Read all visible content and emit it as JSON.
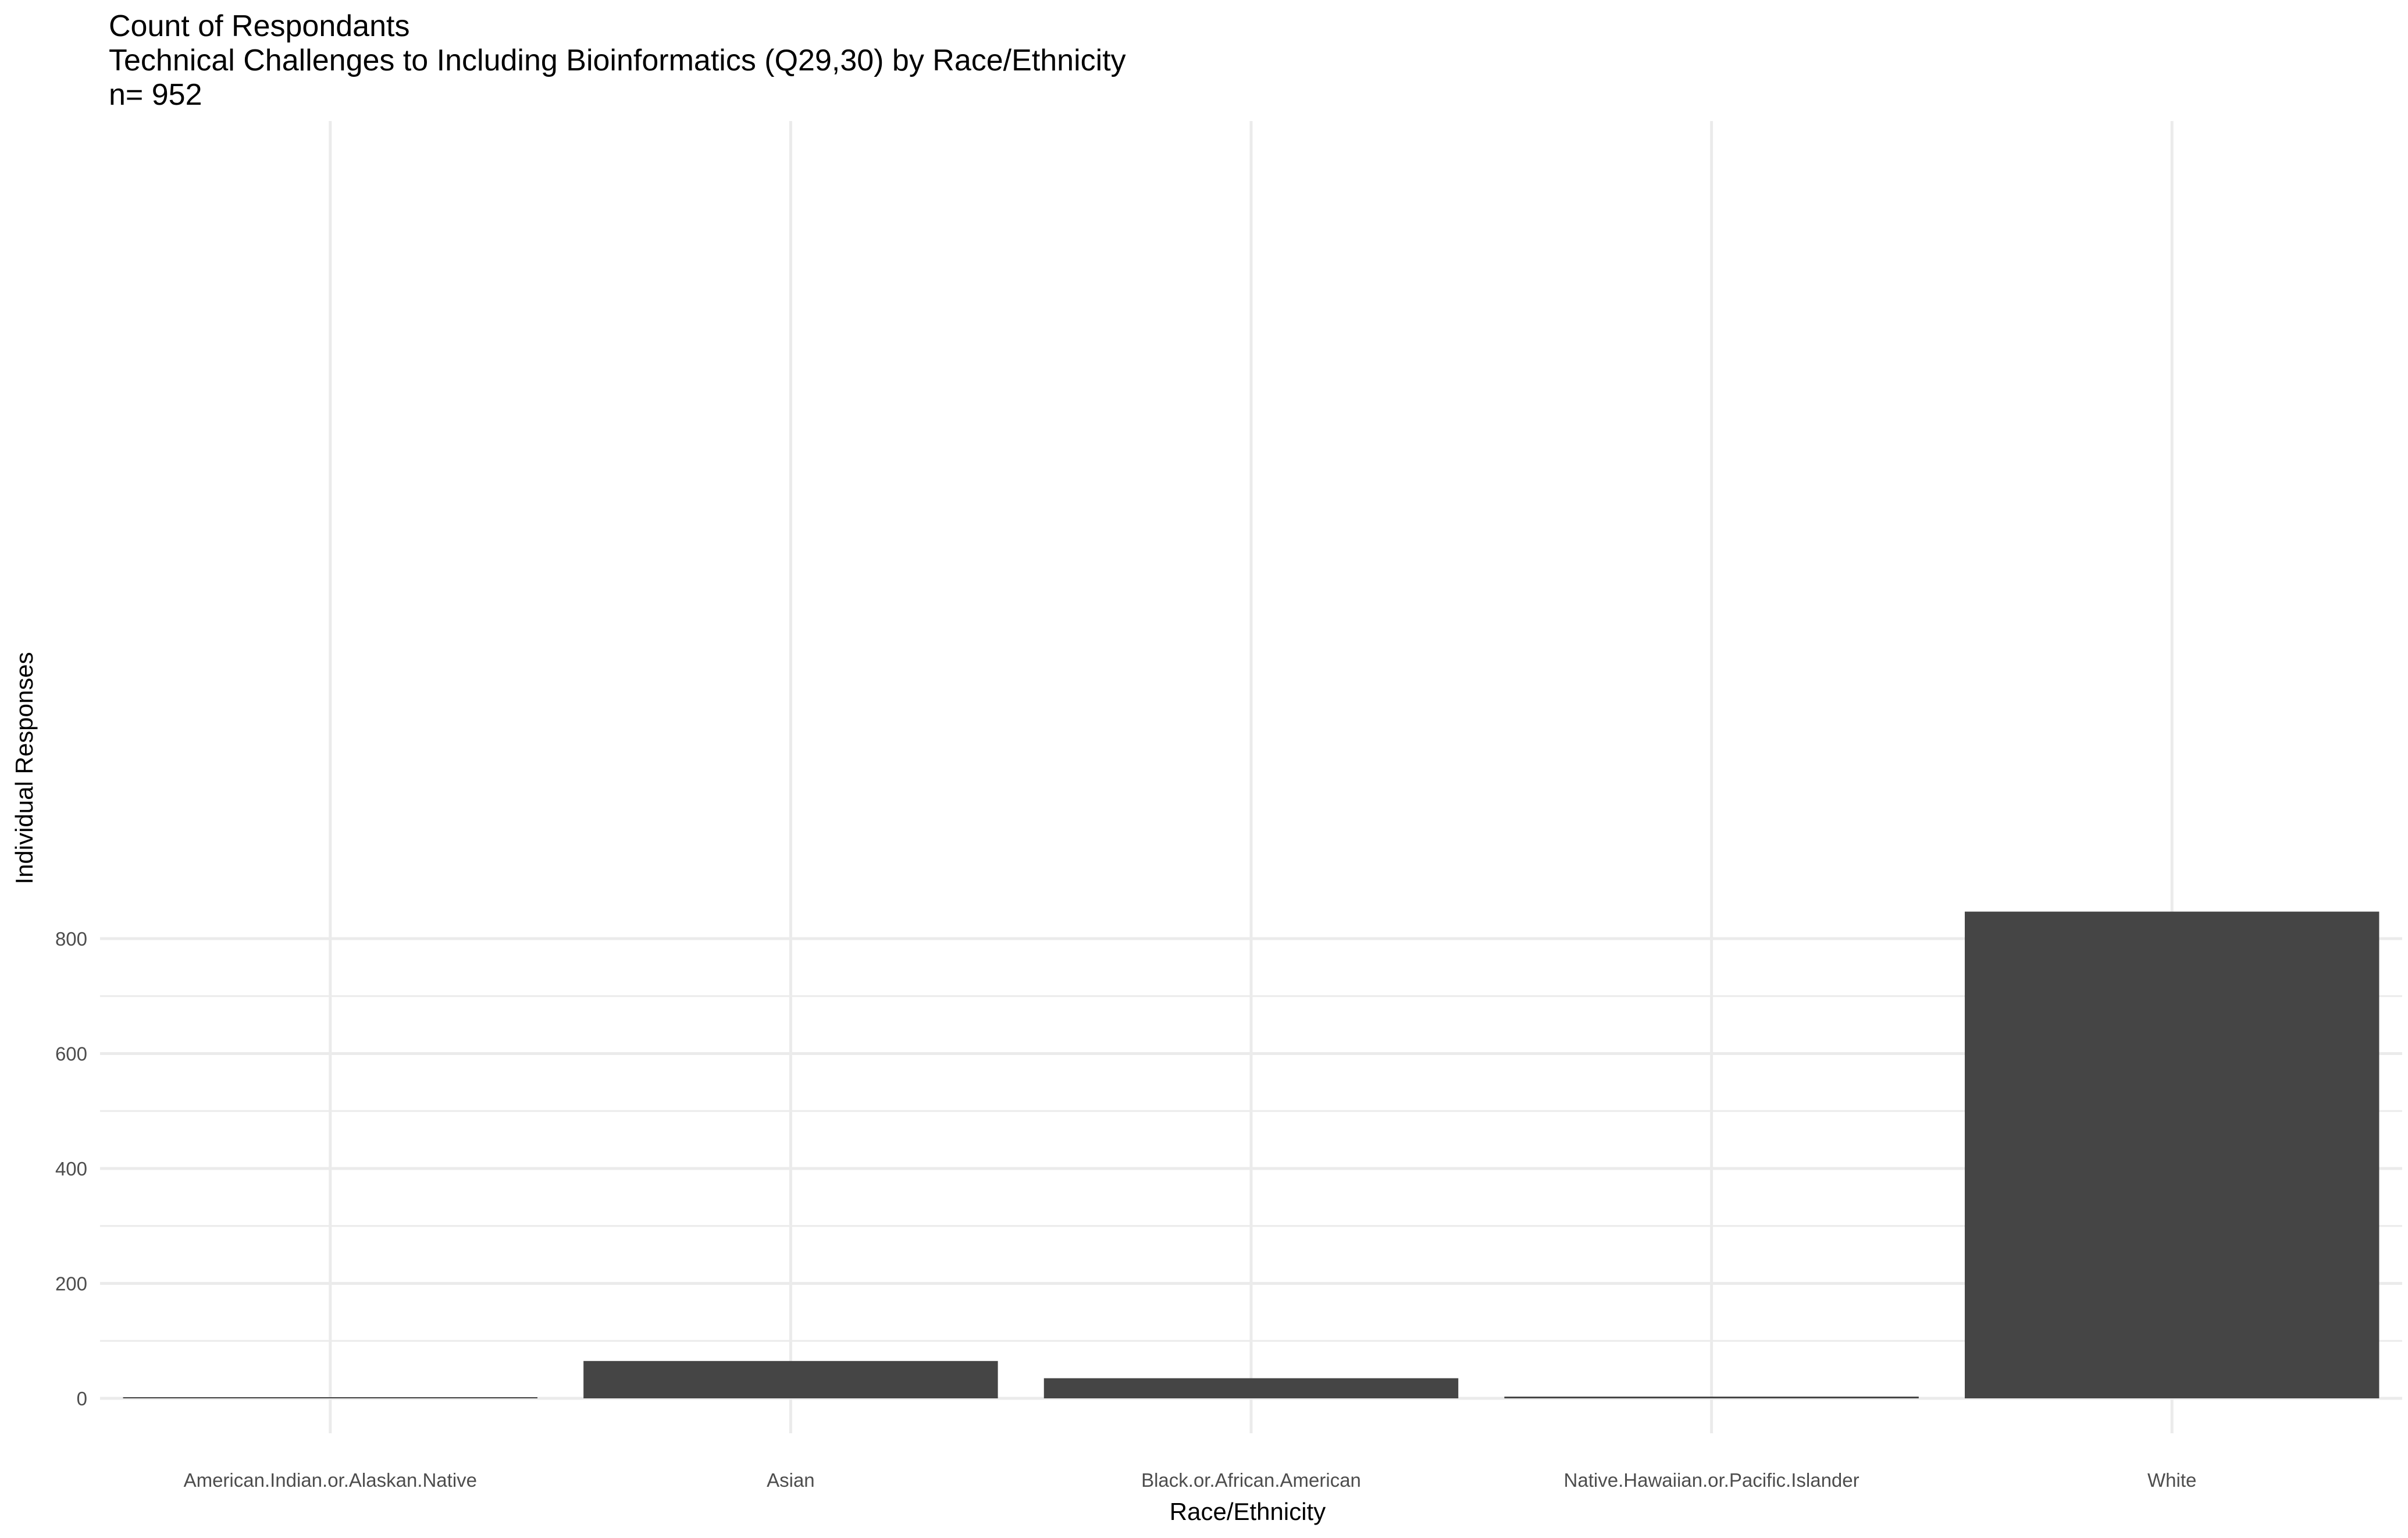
{
  "chart_data": {
    "type": "bar",
    "title": "Count of Respondants",
    "subtitle": "Technical Challenges to Including Bioinformatics (Q29,30) by Race/Ethnicity",
    "caption": "n= 952",
    "xlabel": "Race/Ethnicity",
    "ylabel": "Individual Responses",
    "categories": [
      "American.Indian.or.Alaskan.Native",
      "Asian",
      "Black.or.African.American",
      "Native.Hawaiian.or.Pacific.Islander",
      "White"
    ],
    "values": [
      2,
      65,
      35,
      3,
      847
    ],
    "ylim": [
      0,
      890
    ],
    "yticks": [
      0,
      200,
      400,
      600,
      800
    ],
    "grid": true,
    "legend": "none",
    "bar_color": "#454545",
    "grid_color": "#ebebeb"
  }
}
